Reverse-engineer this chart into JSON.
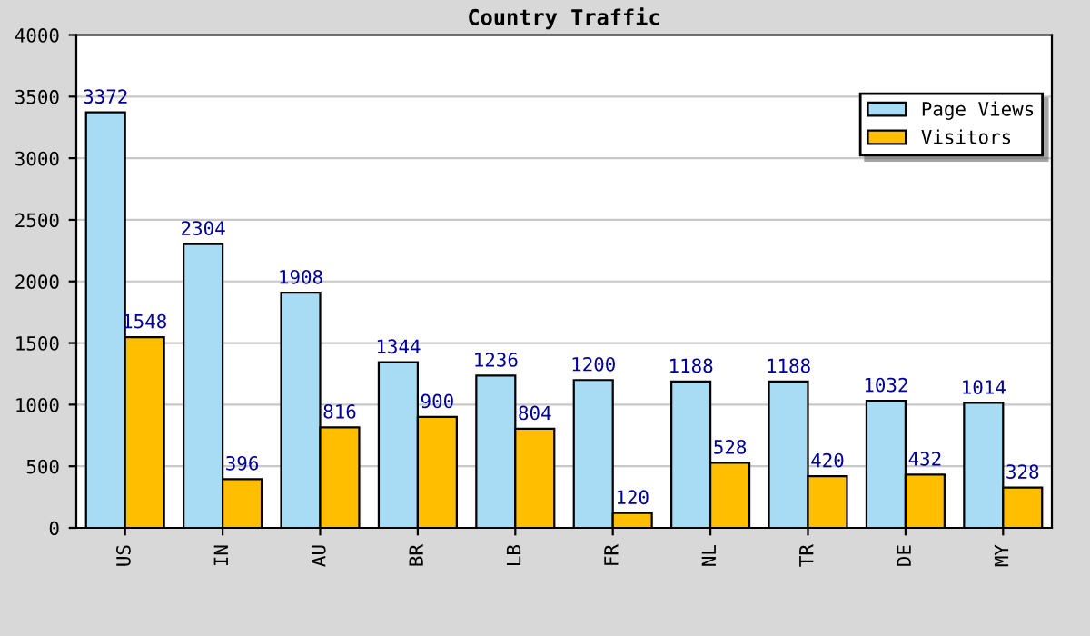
{
  "chart_data": {
    "type": "bar",
    "title": "Country Traffic",
    "categories": [
      "US",
      "IN",
      "AU",
      "BR",
      "LB",
      "FR",
      "NL",
      "TR",
      "DE",
      "MY"
    ],
    "series": [
      {
        "name": "Page Views",
        "color": "#a8dcf4",
        "values": [
          3372,
          2304,
          1908,
          1344,
          1236,
          1200,
          1188,
          1188,
          1032,
          1014
        ]
      },
      {
        "name": "Visitors",
        "color": "#ffbf00",
        "values": [
          1548,
          396,
          816,
          900,
          804,
          120,
          528,
          420,
          432,
          328
        ]
      }
    ],
    "ylim": [
      0,
      4000
    ],
    "yticks": [
      0,
      500,
      1000,
      1500,
      2000,
      2500,
      3000,
      3500,
      4000
    ],
    "grid": "y",
    "legend": "top right",
    "data_labels": true
  }
}
